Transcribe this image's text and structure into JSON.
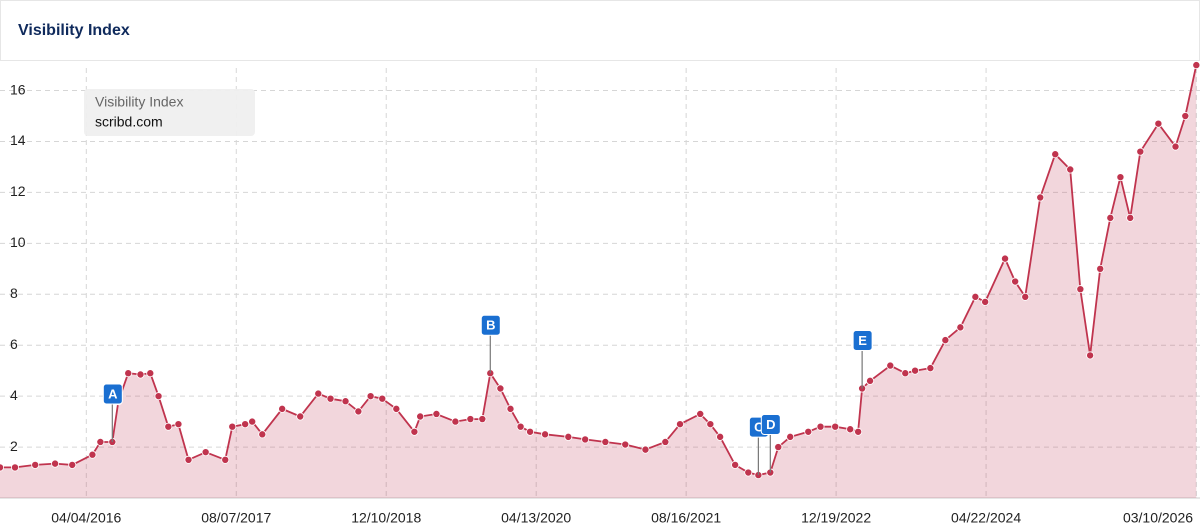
{
  "chart_data": {
    "type": "line",
    "title": "Visibility Index",
    "legend_title": "Visibility Index",
    "x": [
      "2015-06-27",
      "2015-08-15",
      "2015-10-20",
      "2015-12-24",
      "2016-02-18",
      "2016-04-24",
      "2016-05-20",
      "2016-06-28",
      "2016-07-18",
      "2016-08-19",
      "2016-09-28",
      "2016-10-30",
      "2016-11-26",
      "2016-12-28",
      "2017-01-30",
      "2017-03-04",
      "2017-04-29",
      "2017-07-02",
      "2017-07-25",
      "2017-09-05",
      "2017-09-28",
      "2017-10-31",
      "2018-01-04",
      "2018-03-04",
      "2018-05-02",
      "2018-06-11",
      "2018-07-30",
      "2018-09-10",
      "2018-10-20",
      "2018-11-27",
      "2019-01-12",
      "2019-03-12",
      "2019-03-31",
      "2019-05-23",
      "2019-07-24",
      "2019-09-11",
      "2019-10-20",
      "2019-11-15",
      "2019-12-18",
      "2020-01-20",
      "2020-02-22",
      "2020-03-24",
      "2020-05-12",
      "2020-07-27",
      "2020-09-20",
      "2020-11-25",
      "2021-01-29",
      "2021-04-05",
      "2021-06-09",
      "2021-07-27",
      "2021-10-01",
      "2021-11-03",
      "2021-12-05",
      "2022-01-23",
      "2022-03-07",
      "2022-04-09",
      "2022-05-18",
      "2022-06-13",
      "2022-07-22",
      "2022-09-19",
      "2022-10-29",
      "2022-12-16",
      "2023-02-03",
      "2023-03-01",
      "2023-03-14",
      "2023-04-09",
      "2023-06-14",
      "2023-08-02",
      "2023-09-03",
      "2023-10-23",
      "2023-12-11",
      "2024-01-29",
      "2024-03-18",
      "2024-04-19",
      "2024-06-23",
      "2024-07-26",
      "2024-08-28",
      "2024-10-16",
      "2024-12-04",
      "2025-01-22",
      "2025-02-24",
      "2025-03-28",
      "2025-04-30",
      "2025-06-02",
      "2025-07-05",
      "2025-08-06",
      "2025-09-08",
      "2025-11-06",
      "2026-01-01",
      "2026-02-02",
      "2026-03-10"
    ],
    "series": [
      {
        "name": "scribd.com",
        "color": "#c0344e",
        "values": [
          1.2,
          1.2,
          1.3,
          1.35,
          1.3,
          1.7,
          2.2,
          2.2,
          3.8,
          4.9,
          4.85,
          4.9,
          4.0,
          2.8,
          2.9,
          1.5,
          1.8,
          1.5,
          2.8,
          2.9,
          3.0,
          2.5,
          3.5,
          3.2,
          4.1,
          3.9,
          3.8,
          3.4,
          4.0,
          3.9,
          3.5,
          2.6,
          3.2,
          3.3,
          3.0,
          3.1,
          3.1,
          4.9,
          4.3,
          3.5,
          2.8,
          2.6,
          2.5,
          2.4,
          2.3,
          2.2,
          2.1,
          1.9,
          2.2,
          2.9,
          3.3,
          2.9,
          2.4,
          1.3,
          1.0,
          0.9,
          1.0,
          2.0,
          2.4,
          2.6,
          2.8,
          2.8,
          2.7,
          2.6,
          4.3,
          4.6,
          5.2,
          4.9,
          5.0,
          5.1,
          6.2,
          6.7,
          7.9,
          7.7,
          9.4,
          8.5,
          7.9,
          11.8,
          13.5,
          12.9,
          8.2,
          5.6,
          9.0,
          11.0,
          12.6,
          11.0,
          13.6,
          14.7,
          13.8,
          15.0,
          17.0
        ]
      }
    ],
    "xlim": [
      "2015-06-27",
      "2026-03-22"
    ],
    "xticks": [
      {
        "value": "2016-04-04",
        "label": "04/04/2016"
      },
      {
        "value": "2017-08-07",
        "label": "08/07/2017"
      },
      {
        "value": "2018-12-10",
        "label": "12/10/2018"
      },
      {
        "value": "2020-04-13",
        "label": "04/13/2020"
      },
      {
        "value": "2021-08-16",
        "label": "08/16/2021"
      },
      {
        "value": "2022-12-19",
        "label": "12/19/2022"
      },
      {
        "value": "2024-04-22",
        "label": "04/22/2024"
      },
      {
        "value": "2026-03-10",
        "label": "03/10/2026"
      }
    ],
    "ylim": [
      0,
      17.2
    ],
    "yticks": [
      2,
      4,
      6,
      8,
      10,
      12,
      14,
      16
    ],
    "grid": true,
    "annotations": [
      {
        "label": "A",
        "x": "2016-06-28"
      },
      {
        "label": "B",
        "x": "2019-11-15"
      },
      {
        "label": "C",
        "x": "2022-04-09"
      },
      {
        "label": "D",
        "x": "2022-05-18"
      },
      {
        "label": "E",
        "x": "2023-03-14"
      }
    ]
  }
}
